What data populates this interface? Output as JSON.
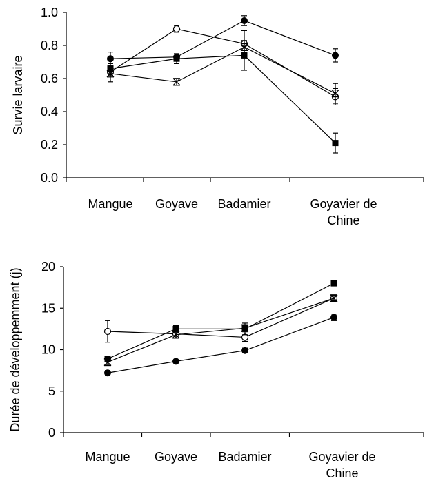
{
  "chart_data": [
    {
      "type": "line",
      "title": "",
      "ylabel": "Survie larvaire",
      "xlabel": "",
      "ylim": [
        0,
        1.0
      ],
      "yticks": [
        "0.0",
        "0.2",
        "0.4",
        "0.6",
        "0.8",
        "1.0"
      ],
      "categories": [
        "Mangue",
        "Goyave",
        "Badamier",
        "Goyavier de Chine"
      ],
      "grid": false,
      "series": [
        {
          "marker": "filled-circle",
          "values": [
            0.72,
            0.73,
            0.95,
            0.74
          ],
          "errors": [
            0.04,
            0.02,
            0.03,
            0.04
          ]
        },
        {
          "marker": "open-circle",
          "values": [
            0.64,
            0.9,
            0.81,
            0.49
          ],
          "errors": [
            0.02,
            0.02,
            0.08,
            0.05
          ]
        },
        {
          "marker": "filled-square",
          "values": [
            0.66,
            0.72,
            0.74,
            0.21
          ],
          "errors": [
            0.03,
            0.03,
            0.09,
            0.06
          ]
        },
        {
          "marker": "star",
          "values": [
            0.63,
            0.58,
            0.79,
            0.51
          ],
          "errors": [
            0.05,
            0.02,
            0.02,
            0.06
          ]
        }
      ]
    },
    {
      "type": "line",
      "title": "",
      "ylabel": "Durée de développemment (j)",
      "xlabel": "",
      "ylim": [
        0,
        20
      ],
      "yticks": [
        "0",
        "5",
        "10",
        "15",
        "20"
      ],
      "categories": [
        "Mangue",
        "Goyave",
        "Badamier",
        "Goyavier de Chine"
      ],
      "grid": false,
      "series": [
        {
          "marker": "filled-circle",
          "values": [
            7.2,
            8.6,
            9.9,
            13.9
          ],
          "errors": [
            0.3,
            0.2,
            0.3,
            0.4
          ]
        },
        {
          "marker": "open-circle",
          "values": [
            12.2,
            11.9,
            11.5,
            16.2
          ],
          "errors": [
            1.3,
            0.5,
            0.5,
            0.4
          ]
        },
        {
          "marker": "filled-square",
          "values": [
            8.9,
            12.5,
            12.5,
            18.0
          ],
          "errors": [
            0.3,
            0.4,
            0.7,
            0.3
          ]
        },
        {
          "marker": "star",
          "values": [
            8.5,
            11.8,
            12.6,
            16.2
          ],
          "errors": [
            0.3,
            0.4,
            0.3,
            0.3
          ]
        }
      ]
    }
  ]
}
